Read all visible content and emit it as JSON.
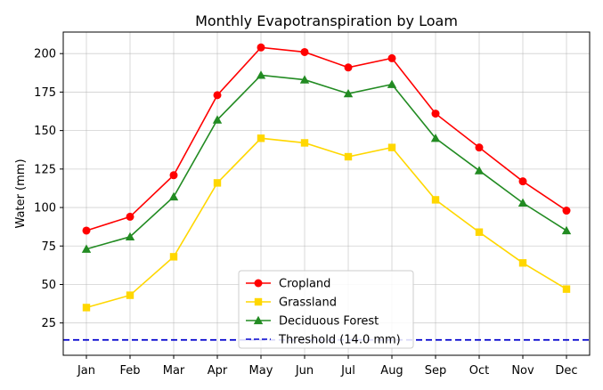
{
  "chart_data": {
    "type": "line",
    "title": "Monthly Evapotranspiration by Loam",
    "xlabel": "",
    "ylabel": "Water (mm)",
    "categories": [
      "Jan",
      "Feb",
      "Mar",
      "Apr",
      "May",
      "Jun",
      "Jul",
      "Aug",
      "Sep",
      "Oct",
      "Nov",
      "Dec"
    ],
    "ylim": [
      4,
      214
    ],
    "yticks": [
      25,
      50,
      75,
      100,
      125,
      150,
      175,
      200
    ],
    "grid": true,
    "legend_position": "bottom-center",
    "series": [
      {
        "name": "Cropland",
        "color": "#ff0000",
        "marker": "circle",
        "values": [
          85,
          94,
          121,
          173,
          204,
          201,
          191,
          197,
          161,
          139,
          117,
          98
        ]
      },
      {
        "name": "Grassland",
        "color": "#ffd700",
        "marker": "square",
        "values": [
          35,
          43,
          68,
          116,
          145,
          142,
          133,
          139,
          105,
          84,
          64,
          47
        ]
      },
      {
        "name": "Deciduous Forest",
        "color": "#228b22",
        "marker": "triangle",
        "values": [
          73,
          81,
          107,
          157,
          186,
          183,
          174,
          180,
          145,
          124,
          103,
          85
        ]
      }
    ],
    "threshold": {
      "name": "Threshold (14.0 mm)",
      "value": 14.0,
      "color": "#0000cd",
      "style": "dashed"
    }
  }
}
